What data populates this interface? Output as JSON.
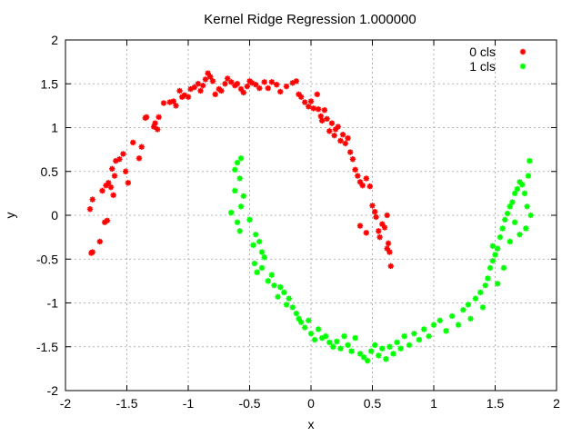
{
  "chart_data": {
    "type": "scatter",
    "title": "Kernel Ridge Regression 1.000000",
    "xlabel": "x",
    "ylabel": "y",
    "xlim": [
      -2,
      2
    ],
    "ylim": [
      -2,
      2
    ],
    "x_ticks": [
      -2,
      -1.5,
      -1,
      -0.5,
      0,
      0.5,
      1,
      1.5,
      2
    ],
    "y_ticks": [
      -2,
      -1.5,
      -1,
      -0.5,
      0,
      0.5,
      1,
      1.5,
      2
    ],
    "grid": true,
    "legend_position": "top-right",
    "marker": "star",
    "series": [
      {
        "name": "0 cls",
        "color": "#ff0000",
        "points": [
          [
            -1.79,
            -0.43
          ],
          [
            -1.78,
            -0.42
          ],
          [
            -1.8,
            0.07
          ],
          [
            -1.78,
            0.18
          ],
          [
            -1.72,
            -0.3
          ],
          [
            -1.68,
            -0.08
          ],
          [
            -1.66,
            -0.06
          ],
          [
            -1.7,
            0.28
          ],
          [
            -1.67,
            0.34
          ],
          [
            -1.65,
            0.37
          ],
          [
            -1.63,
            0.32
          ],
          [
            -1.61,
            0.23
          ],
          [
            -1.6,
            0.45
          ],
          [
            -1.62,
            0.53
          ],
          [
            -1.59,
            0.62
          ],
          [
            -1.56,
            0.64
          ],
          [
            -1.53,
            0.7
          ],
          [
            -1.51,
            0.5
          ],
          [
            -1.49,
            0.37
          ],
          [
            -1.45,
            0.83
          ],
          [
            -1.4,
            0.65
          ],
          [
            -1.38,
            0.78
          ],
          [
            -1.35,
            1.11
          ],
          [
            -1.34,
            1.12
          ],
          [
            -1.28,
            1.01
          ],
          [
            -1.27,
            1.05
          ],
          [
            -1.25,
            0.98
          ],
          [
            -1.24,
            1.12
          ],
          [
            -1.2,
            1.28
          ],
          [
            -1.15,
            1.29
          ],
          [
            -1.12,
            1.3
          ],
          [
            -1.1,
            1.25
          ],
          [
            -1.07,
            1.42
          ],
          [
            -1.05,
            1.35
          ],
          [
            -1.03,
            1.37
          ],
          [
            -1.0,
            1.35
          ],
          [
            -0.98,
            1.44
          ],
          [
            -0.95,
            1.46
          ],
          [
            -0.92,
            1.5
          ],
          [
            -0.9,
            1.42
          ],
          [
            -0.88,
            1.48
          ],
          [
            -0.86,
            1.55
          ],
          [
            -0.84,
            1.62
          ],
          [
            -0.82,
            1.58
          ],
          [
            -0.8,
            1.53
          ],
          [
            -0.78,
            1.38
          ],
          [
            -0.75,
            1.44
          ],
          [
            -0.73,
            1.42
          ],
          [
            -0.7,
            1.5
          ],
          [
            -0.68,
            1.56
          ],
          [
            -0.65,
            1.52
          ],
          [
            -0.62,
            1.48
          ],
          [
            -0.6,
            1.5
          ],
          [
            -0.57,
            1.44
          ],
          [
            -0.55,
            1.4
          ],
          [
            -0.52,
            1.47
          ],
          [
            -0.5,
            1.53
          ],
          [
            -0.48,
            1.51
          ],
          [
            -0.45,
            1.49
          ],
          [
            -0.42,
            1.45
          ],
          [
            -0.38,
            1.52
          ],
          [
            -0.35,
            1.45
          ],
          [
            -0.32,
            1.52
          ],
          [
            -0.28,
            1.49
          ],
          [
            -0.25,
            1.41
          ],
          [
            -0.2,
            1.47
          ],
          [
            -0.15,
            1.51
          ],
          [
            -0.12,
            1.53
          ],
          [
            -0.1,
            1.38
          ],
          [
            -0.08,
            1.35
          ],
          [
            -0.05,
            1.29
          ],
          [
            -0.02,
            1.24
          ],
          [
            0.0,
            1.3
          ],
          [
            0.02,
            1.22
          ],
          [
            0.05,
            1.38
          ],
          [
            0.06,
            1.21
          ],
          [
            0.08,
            1.13
          ],
          [
            0.09,
            1.08
          ],
          [
            0.11,
            1.2
          ],
          [
            0.13,
            1.1
          ],
          [
            0.15,
            0.96
          ],
          [
            0.17,
            1.05
          ],
          [
            0.19,
            0.91
          ],
          [
            0.2,
            0.98
          ],
          [
            0.22,
            1.01
          ],
          [
            0.24,
            0.85
          ],
          [
            0.26,
            0.92
          ],
          [
            0.28,
            0.82
          ],
          [
            0.3,
            0.88
          ],
          [
            0.32,
            0.72
          ],
          [
            0.34,
            0.64
          ],
          [
            0.36,
            0.52
          ],
          [
            0.38,
            0.45
          ],
          [
            0.4,
            0.38
          ],
          [
            0.42,
            0.34
          ],
          [
            0.45,
            0.42
          ],
          [
            0.48,
            0.33
          ],
          [
            0.5,
            0.11
          ],
          [
            0.52,
            0.04
          ],
          [
            0.53,
            -0.02
          ],
          [
            0.55,
            -0.18
          ],
          [
            0.56,
            -0.25
          ],
          [
            0.58,
            -0.1
          ],
          [
            0.6,
            -0.14
          ],
          [
            0.62,
            0.0
          ],
          [
            0.63,
            -0.32
          ],
          [
            0.64,
            -0.42
          ],
          [
            0.65,
            -0.58
          ],
          [
            0.62,
            -0.38
          ],
          [
            0.4,
            -0.12
          ],
          [
            0.45,
            -0.2
          ]
        ]
      },
      {
        "name": "1 cls",
        "color": "#00ff00",
        "points": [
          [
            -0.57,
            0.65
          ],
          [
            -0.6,
            0.6
          ],
          [
            -0.62,
            0.52
          ],
          [
            -0.58,
            0.42
          ],
          [
            -0.62,
            0.28
          ],
          [
            -0.55,
            0.22
          ],
          [
            -0.57,
            0.1
          ],
          [
            -0.6,
            -0.08
          ],
          [
            -0.65,
            0.03
          ],
          [
            -0.5,
            -0.05
          ],
          [
            -0.58,
            -0.18
          ],
          [
            -0.45,
            -0.22
          ],
          [
            -0.47,
            -0.34
          ],
          [
            -0.42,
            -0.3
          ],
          [
            -0.4,
            -0.42
          ],
          [
            -0.38,
            -0.48
          ],
          [
            -0.46,
            -0.55
          ],
          [
            -0.44,
            -0.65
          ],
          [
            -0.4,
            -0.6
          ],
          [
            -0.35,
            -0.75
          ],
          [
            -0.32,
            -0.68
          ],
          [
            -0.3,
            -0.8
          ],
          [
            -0.27,
            -0.93
          ],
          [
            -0.25,
            -0.82
          ],
          [
            -0.22,
            -0.88
          ],
          [
            -0.2,
            -1.02
          ],
          [
            -0.18,
            -0.95
          ],
          [
            -0.15,
            -1.05
          ],
          [
            -0.12,
            -1.12
          ],
          [
            -0.1,
            -1.18
          ],
          [
            -0.08,
            -1.22
          ],
          [
            -0.05,
            -1.28
          ],
          [
            -0.02,
            -1.2
          ],
          [
            0.0,
            -1.35
          ],
          [
            0.03,
            -1.42
          ],
          [
            0.06,
            -1.3
          ],
          [
            0.09,
            -1.4
          ],
          [
            0.12,
            -1.38
          ],
          [
            0.15,
            -1.45
          ],
          [
            0.18,
            -1.5
          ],
          [
            0.21,
            -1.44
          ],
          [
            0.24,
            -1.52
          ],
          [
            0.27,
            -1.38
          ],
          [
            0.3,
            -1.48
          ],
          [
            0.33,
            -1.55
          ],
          [
            0.36,
            -1.4
          ],
          [
            0.4,
            -1.58
          ],
          [
            0.43,
            -1.62
          ],
          [
            0.46,
            -1.66
          ],
          [
            0.49,
            -1.55
          ],
          [
            0.52,
            -1.48
          ],
          [
            0.55,
            -1.6
          ],
          [
            0.58,
            -1.52
          ],
          [
            0.61,
            -1.64
          ],
          [
            0.64,
            -1.5
          ],
          [
            0.67,
            -1.58
          ],
          [
            0.7,
            -1.45
          ],
          [
            0.73,
            -1.52
          ],
          [
            0.76,
            -1.38
          ],
          [
            0.8,
            -1.48
          ],
          [
            0.84,
            -1.35
          ],
          [
            0.88,
            -1.42
          ],
          [
            0.92,
            -1.3
          ],
          [
            0.96,
            -1.38
          ],
          [
            1.0,
            -1.25
          ],
          [
            1.05,
            -1.2
          ],
          [
            1.1,
            -1.32
          ],
          [
            1.15,
            -1.15
          ],
          [
            1.2,
            -1.25
          ],
          [
            1.24,
            -1.08
          ],
          [
            1.28,
            -1.02
          ],
          [
            1.3,
            -1.18
          ],
          [
            1.34,
            -0.95
          ],
          [
            1.38,
            -0.88
          ],
          [
            1.4,
            -1.05
          ],
          [
            1.42,
            -0.8
          ],
          [
            1.44,
            -0.72
          ],
          [
            1.46,
            -0.6
          ],
          [
            1.48,
            -0.52
          ],
          [
            1.5,
            -0.45
          ],
          [
            1.52,
            -0.38
          ],
          [
            1.54,
            -0.25
          ],
          [
            1.56,
            -0.15
          ],
          [
            1.58,
            -0.05
          ],
          [
            1.6,
            0.02
          ],
          [
            1.62,
            0.1
          ],
          [
            1.64,
            0.15
          ],
          [
            1.66,
            0.25
          ],
          [
            1.68,
            0.3
          ],
          [
            1.7,
            0.38
          ],
          [
            1.72,
            0.35
          ],
          [
            1.74,
            0.25
          ],
          [
            1.76,
            0.1
          ],
          [
            1.77,
            0.45
          ],
          [
            1.78,
            0.62
          ],
          [
            1.79,
            0.0
          ],
          [
            1.75,
            -0.15
          ],
          [
            1.7,
            -0.22
          ],
          [
            1.66,
            -0.08
          ],
          [
            1.62,
            -0.3
          ],
          [
            1.57,
            -0.6
          ],
          [
            1.52,
            -0.78
          ],
          [
            1.48,
            -0.35
          ]
        ]
      }
    ]
  }
}
